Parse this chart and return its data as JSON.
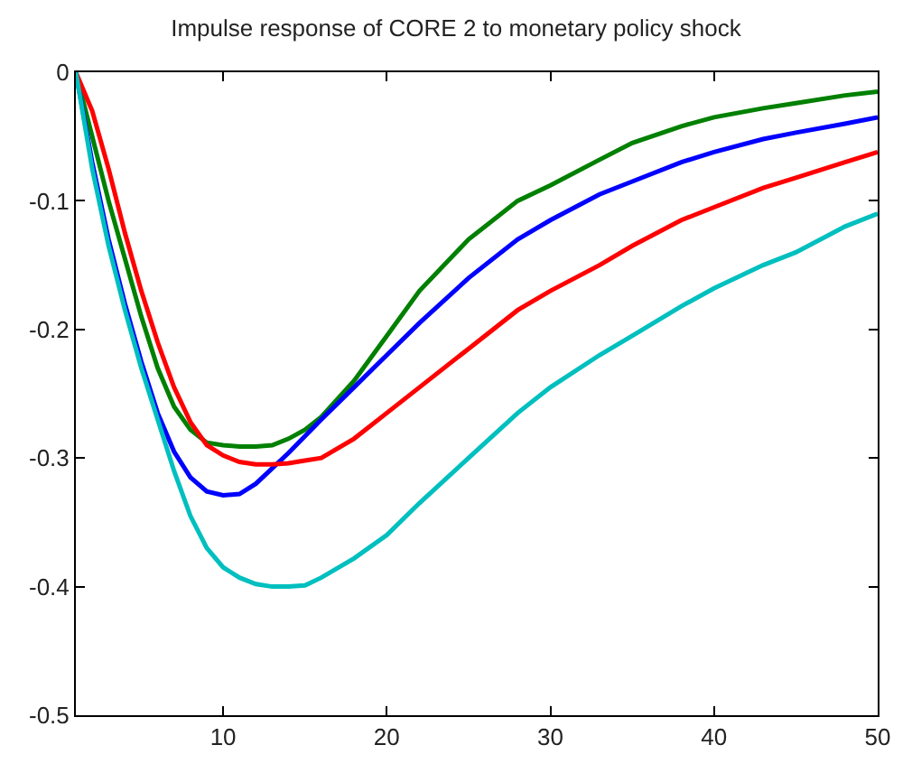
{
  "chart_data": {
    "type": "line",
    "title": "Impulse response of CORE 2 to monetary policy shock",
    "x": [
      1,
      2,
      3,
      4,
      5,
      6,
      7,
      8,
      9,
      10,
      11,
      12,
      13,
      14,
      15,
      16,
      18,
      20,
      22,
      25,
      28,
      30,
      33,
      35,
      38,
      40,
      43,
      45,
      48,
      50
    ],
    "series": [
      {
        "color": "#008000",
        "values": [
          0,
          -0.05,
          -0.1,
          -0.145,
          -0.19,
          -0.23,
          -0.26,
          -0.278,
          -0.288,
          -0.29,
          -0.291,
          -0.291,
          -0.29,
          -0.285,
          -0.278,
          -0.268,
          -0.24,
          -0.205,
          -0.17,
          -0.13,
          -0.1,
          -0.088,
          -0.068,
          -0.055,
          -0.042,
          -0.035,
          -0.028,
          -0.024,
          -0.018,
          -0.015
        ]
      },
      {
        "color": "#0000ff",
        "values": [
          0,
          -0.07,
          -0.13,
          -0.18,
          -0.225,
          -0.265,
          -0.295,
          -0.315,
          -0.326,
          -0.329,
          -0.328,
          -0.32,
          -0.308,
          -0.296,
          -0.283,
          -0.27,
          -0.245,
          -0.22,
          -0.195,
          -0.16,
          -0.13,
          -0.115,
          -0.095,
          -0.085,
          -0.07,
          -0.062,
          -0.052,
          -0.047,
          -0.04,
          -0.035
        ]
      },
      {
        "color": "#ff0000",
        "values": [
          0,
          -0.03,
          -0.075,
          -0.125,
          -0.17,
          -0.21,
          -0.245,
          -0.272,
          -0.29,
          -0.298,
          -0.303,
          -0.305,
          -0.305,
          -0.304,
          -0.302,
          -0.3,
          -0.285,
          -0.265,
          -0.245,
          -0.215,
          -0.185,
          -0.17,
          -0.15,
          -0.135,
          -0.115,
          -0.105,
          -0.09,
          -0.082,
          -0.07,
          -0.062
        ]
      },
      {
        "color": "#00bfbf",
        "values": [
          0,
          -0.075,
          -0.135,
          -0.185,
          -0.23,
          -0.27,
          -0.31,
          -0.345,
          -0.37,
          -0.385,
          -0.393,
          -0.398,
          -0.4,
          -0.4,
          -0.399,
          -0.393,
          -0.378,
          -0.36,
          -0.335,
          -0.3,
          -0.265,
          -0.245,
          -0.22,
          -0.205,
          -0.182,
          -0.168,
          -0.15,
          -0.14,
          -0.12,
          -0.11
        ]
      }
    ],
    "xlim": [
      1,
      50
    ],
    "xticks": [
      10,
      20,
      30,
      40,
      50
    ],
    "ylim": [
      -0.5,
      0
    ],
    "yticks": [
      -0.5,
      -0.4,
      -0.3,
      -0.2,
      -0.1,
      0
    ]
  }
}
